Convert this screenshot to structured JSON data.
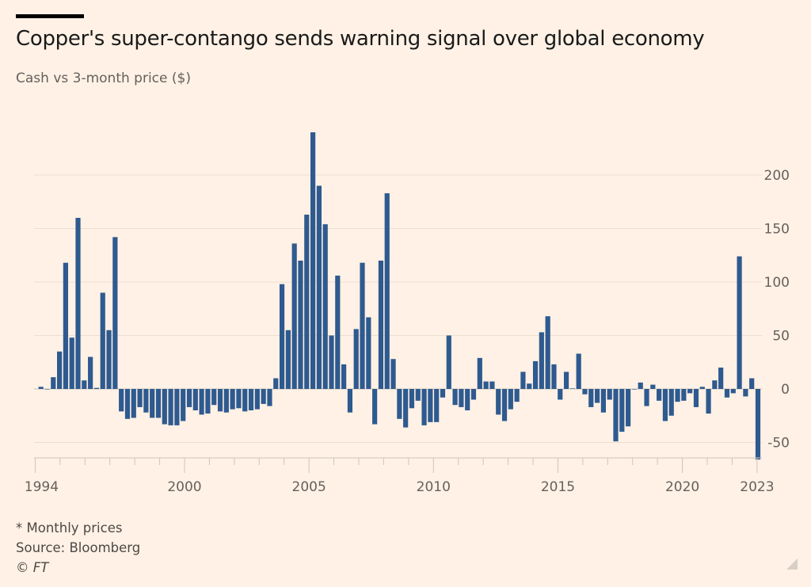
{
  "chart_data": {
    "type": "bar",
    "title": "Copper's super-contango sends warning signal over global economy",
    "subtitle": "Cash vs 3-month price ($)",
    "xlabel": "",
    "ylabel": "",
    "x_start": "1994 Q1",
    "x_end": "2023 Q1",
    "x_tick_labels": [
      "1994",
      "2000",
      "2005",
      "2010",
      "2015",
      "2020",
      "2023"
    ],
    "y_tick_labels": [
      "-50",
      "0",
      "50",
      "100",
      "150",
      "200"
    ],
    "ylim": [
      -70,
      245
    ],
    "grid": true,
    "y_axis_side": "right",
    "bar_color": "#2e5a8f",
    "values": [
      2,
      0,
      11,
      35,
      118,
      48,
      160,
      8,
      30,
      1,
      90,
      55,
      142,
      -21,
      -28,
      -27,
      -17,
      -22,
      -27,
      -27,
      -33,
      -34,
      -34,
      -30,
      -17,
      -20,
      -24,
      -23,
      -15,
      -21,
      -22,
      -19,
      -18,
      -21,
      -20,
      -19,
      -14,
      -16,
      10,
      98,
      55,
      136,
      120,
      163,
      240,
      190,
      154,
      50,
      106,
      23,
      -22,
      56,
      118,
      67,
      -33,
      120,
      183,
      28,
      -28,
      -36,
      -18,
      -11,
      -34,
      -31,
      -31,
      -8,
      50,
      -15,
      -17,
      -20,
      -10,
      29,
      7,
      7,
      -24,
      -30,
      -19,
      -12,
      16,
      5,
      26,
      53,
      68,
      23,
      -10,
      16,
      0.5,
      33,
      -5,
      -17,
      -13,
      -22,
      -10,
      -49,
      -40,
      -35,
      -0.5,
      6,
      -16,
      4,
      -11,
      -30,
      -25,
      -12,
      -11,
      -4,
      -17,
      2,
      -23,
      8,
      20,
      -8,
      -4,
      124,
      -7,
      10,
      -66
    ]
  },
  "footer": {
    "note": "* Monthly prices",
    "source": "Source: Bloomberg",
    "credit": "© FT"
  }
}
